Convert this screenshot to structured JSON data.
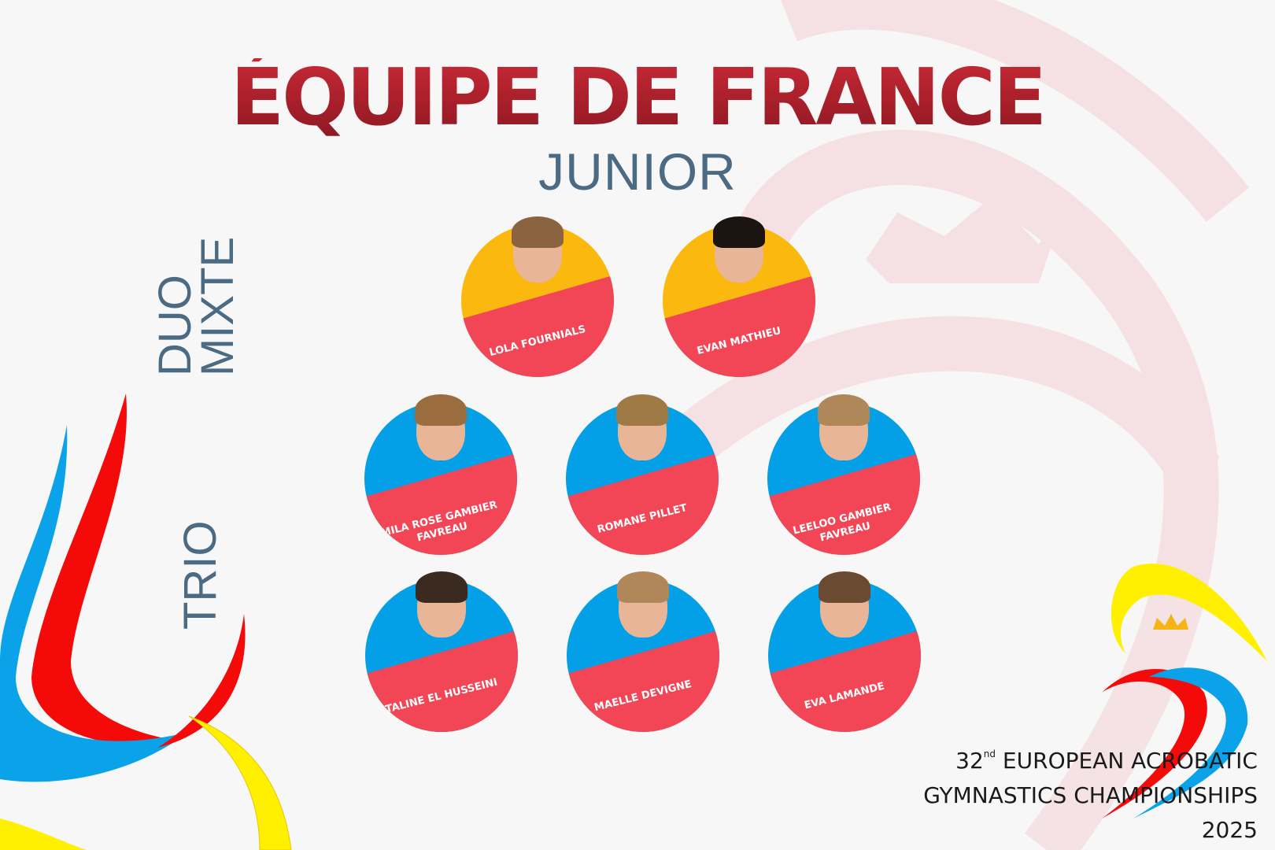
{
  "header": {
    "title": "ÉQUIPE DE FRANCE",
    "subtitle": "JUNIOR"
  },
  "categories": [
    {
      "label": "DUO MIXTE",
      "athletes": [
        "LOLA FOURNIALS",
        "EVAN MATHIEU"
      ]
    },
    {
      "label": "TRIO",
      "athletes": [
        "MILA ROSE GAMBIER FAVREAU",
        "ROMANE PILLET",
        "LEELOO GAMBIER FAVREAU",
        "TALINE EL HUSSEINI",
        "MAELLE DEVIGNE",
        "EVA LAMANDE"
      ]
    }
  ],
  "event": {
    "number": "32",
    "ordinal": "nd",
    "line1": "EUROPEAN ACROBATIC",
    "line2": "GYMNASTICS CHAMPIONSHIPS",
    "year": "2025"
  },
  "colors": {
    "title": "#a81f2a",
    "subtitle": "#4b6a84",
    "duo_circle": "#fbb80f",
    "trio_circle": "#03a0e8",
    "name_band": "#f24657",
    "logo_red": "#f50a0a",
    "logo_blue": "#0aa3ea",
    "logo_yellow": "#fff000",
    "crown": "#f6b417"
  }
}
